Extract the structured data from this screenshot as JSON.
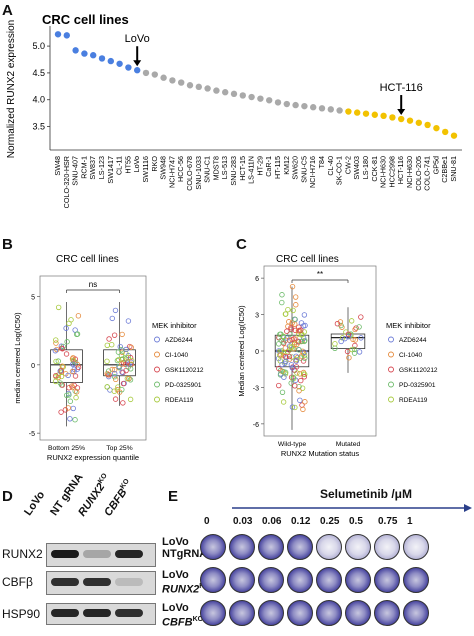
{
  "panels": {
    "A": {
      "label": "A",
      "chart_data": {
        "type": "scatter",
        "title": "CRC cell lines",
        "ylabel": "Normalized RUNX2 expression",
        "ylim": [
          3.1,
          5.3
        ],
        "yticks": [
          3.5,
          4.0,
          4.5,
          5.0
        ],
        "categories": [
          "SW48",
          "COLO-320-HSR",
          "SNU-407",
          "RCM-1",
          "SW837",
          "LS-123",
          "SW1417",
          "CL-11",
          "HT55",
          "LoVo",
          "SW1116",
          "RKO",
          "SW948",
          "NCI-H747",
          "HCC-56",
          "COLO-678",
          "SNU-1033",
          "SNU-C1",
          "MDST8",
          "LS-513",
          "SNU-283",
          "HCT-15",
          "LS-411N",
          "HT-29",
          "CaR-1",
          "HT-115",
          "KM12",
          "SW620",
          "SNU-C5",
          "NCI-H716",
          "T84",
          "CL-40",
          "SK-CO-1",
          "CW-2",
          "SW403",
          "LS-180",
          "CCK-81",
          "NCI-H630",
          "HCC2998",
          "HCT-116",
          "NCI-H630",
          "COLO-205",
          "COLO-741",
          "GP5d",
          "C2BBe1",
          "SNU-81"
        ],
        "values": [
          5.22,
          5.2,
          4.92,
          4.86,
          4.83,
          4.77,
          4.72,
          4.67,
          4.6,
          4.55,
          4.5,
          4.47,
          4.41,
          4.36,
          4.32,
          4.27,
          4.24,
          4.21,
          4.17,
          4.14,
          4.11,
          4.08,
          4.05,
          4.02,
          3.99,
          3.95,
          3.92,
          3.9,
          3.88,
          3.86,
          3.84,
          3.82,
          3.8,
          3.78,
          3.76,
          3.74,
          3.72,
          3.7,
          3.67,
          3.64,
          3.61,
          3.57,
          3.53,
          3.47,
          3.4,
          3.33
        ],
        "groups": [
          "high",
          "high",
          "high",
          "high",
          "high",
          "high",
          "high",
          "high",
          "high",
          "high",
          "mid",
          "mid",
          "mid",
          "mid",
          "mid",
          "mid",
          "mid",
          "mid",
          "mid",
          "mid",
          "mid",
          "mid",
          "mid",
          "mid",
          "mid",
          "mid",
          "mid",
          "mid",
          "mid",
          "mid",
          "mid",
          "mid",
          "mid",
          "low",
          "low",
          "low",
          "low",
          "low",
          "low",
          "low",
          "low",
          "low",
          "low",
          "low",
          "low",
          "low"
        ],
        "colors": {
          "high": "#4a7fe0",
          "mid": "#a9a9a9",
          "low": "#f2c200"
        },
        "annotations": [
          {
            "text": "LoVo",
            "index": 9
          },
          {
            "text": "HCT-116",
            "index": 39
          }
        ]
      }
    },
    "B": {
      "label": "B",
      "chart_data": {
        "type": "box",
        "title": "CRC cell lines",
        "ylabel": "median centered Log(IC50)",
        "xlabel": "RUNX2 expression quantile",
        "ylim": [
          -5.5,
          6.5
        ],
        "yticks": [
          -5,
          0,
          5
        ],
        "categories": [
          "Bottom 25%",
          "Top 25%"
        ],
        "boxes": [
          {
            "q1": -1.3,
            "median": 0.0,
            "q3": 1.1,
            "whisker_low": -4.5,
            "whisker_high": 4.6
          },
          {
            "q1": -0.8,
            "median": 0.0,
            "q3": 1.1,
            "whisker_low": -3.0,
            "whisker_high": 4.6
          }
        ],
        "significance": "ns",
        "legend_title": "MEK inhibitor",
        "legend": [
          "AZD6244",
          "CI-1040",
          "GSK1120212",
          "PD-0325901",
          "RDEA119"
        ],
        "legend_colors": [
          "#6b7ad6",
          "#e58a3c",
          "#d6454e",
          "#6dbb6a",
          "#a6c93c"
        ]
      }
    },
    "C": {
      "label": "C",
      "chart_data": {
        "type": "box",
        "title": "CRC cell lines",
        "ylabel": "Median centered Log(IC50)",
        "xlabel": "RUNX2 Mutation status",
        "ylim": [
          -7,
          7
        ],
        "yticks": [
          -6,
          -3,
          0,
          3,
          6
        ],
        "categories": [
          "Wild-type",
          "Mutated"
        ],
        "boxes": [
          {
            "q1": -1.3,
            "median": 0.0,
            "q3": 1.3,
            "whisker_low": -6.5,
            "whisker_high": 5.3
          },
          {
            "q1": 0.2,
            "median": 1.1,
            "q3": 1.4,
            "whisker_low": -1.8,
            "whisker_high": 3.6
          }
        ],
        "significance": "**",
        "legend_title": "MEK inhibitor",
        "legend": [
          "AZD6244",
          "CI-1040",
          "GSK1120212",
          "PD-0325901",
          "RDEA119"
        ],
        "legend_colors": [
          "#6b7ad6",
          "#e58a3c",
          "#d6454e",
          "#6dbb6a",
          "#a6c93c"
        ]
      }
    },
    "D": {
      "label": "D",
      "lanes": [
        {
          "main": "LoVo",
          "sup": ""
        },
        {
          "main": "NT gRNA",
          "sup": ""
        },
        {
          "main": "RUNX2",
          "sup": "KO"
        },
        {
          "main": "CBFB",
          "sup": "KO"
        }
      ],
      "rows": [
        {
          "label": "RUNX2",
          "bands": [
            0.0,
            0.95,
            0.25,
            0.9
          ]
        },
        {
          "label": "CBFβ",
          "bands": [
            0.0,
            0.85,
            0.85,
            0.15
          ]
        },
        {
          "label": "HSP90",
          "bands": [
            0.0,
            0.9,
            0.9,
            0.85
          ]
        }
      ]
    },
    "E": {
      "label": "E",
      "treatment": "Selumetinib /μM",
      "doses": [
        "0",
        "0.03",
        "0.06",
        "0.12",
        "0.25",
        "0.5",
        "0.75",
        "1"
      ],
      "rows": [
        {
          "line1": "LoVo",
          "line2": "NTgRNA",
          "sup": ""
        },
        {
          "line1": "LoVo",
          "line2": "RUNX2",
          "sup": "KO"
        },
        {
          "line1": "LoVo",
          "line2": "CBFB",
          "sup": "KO"
        }
      ]
    }
  }
}
